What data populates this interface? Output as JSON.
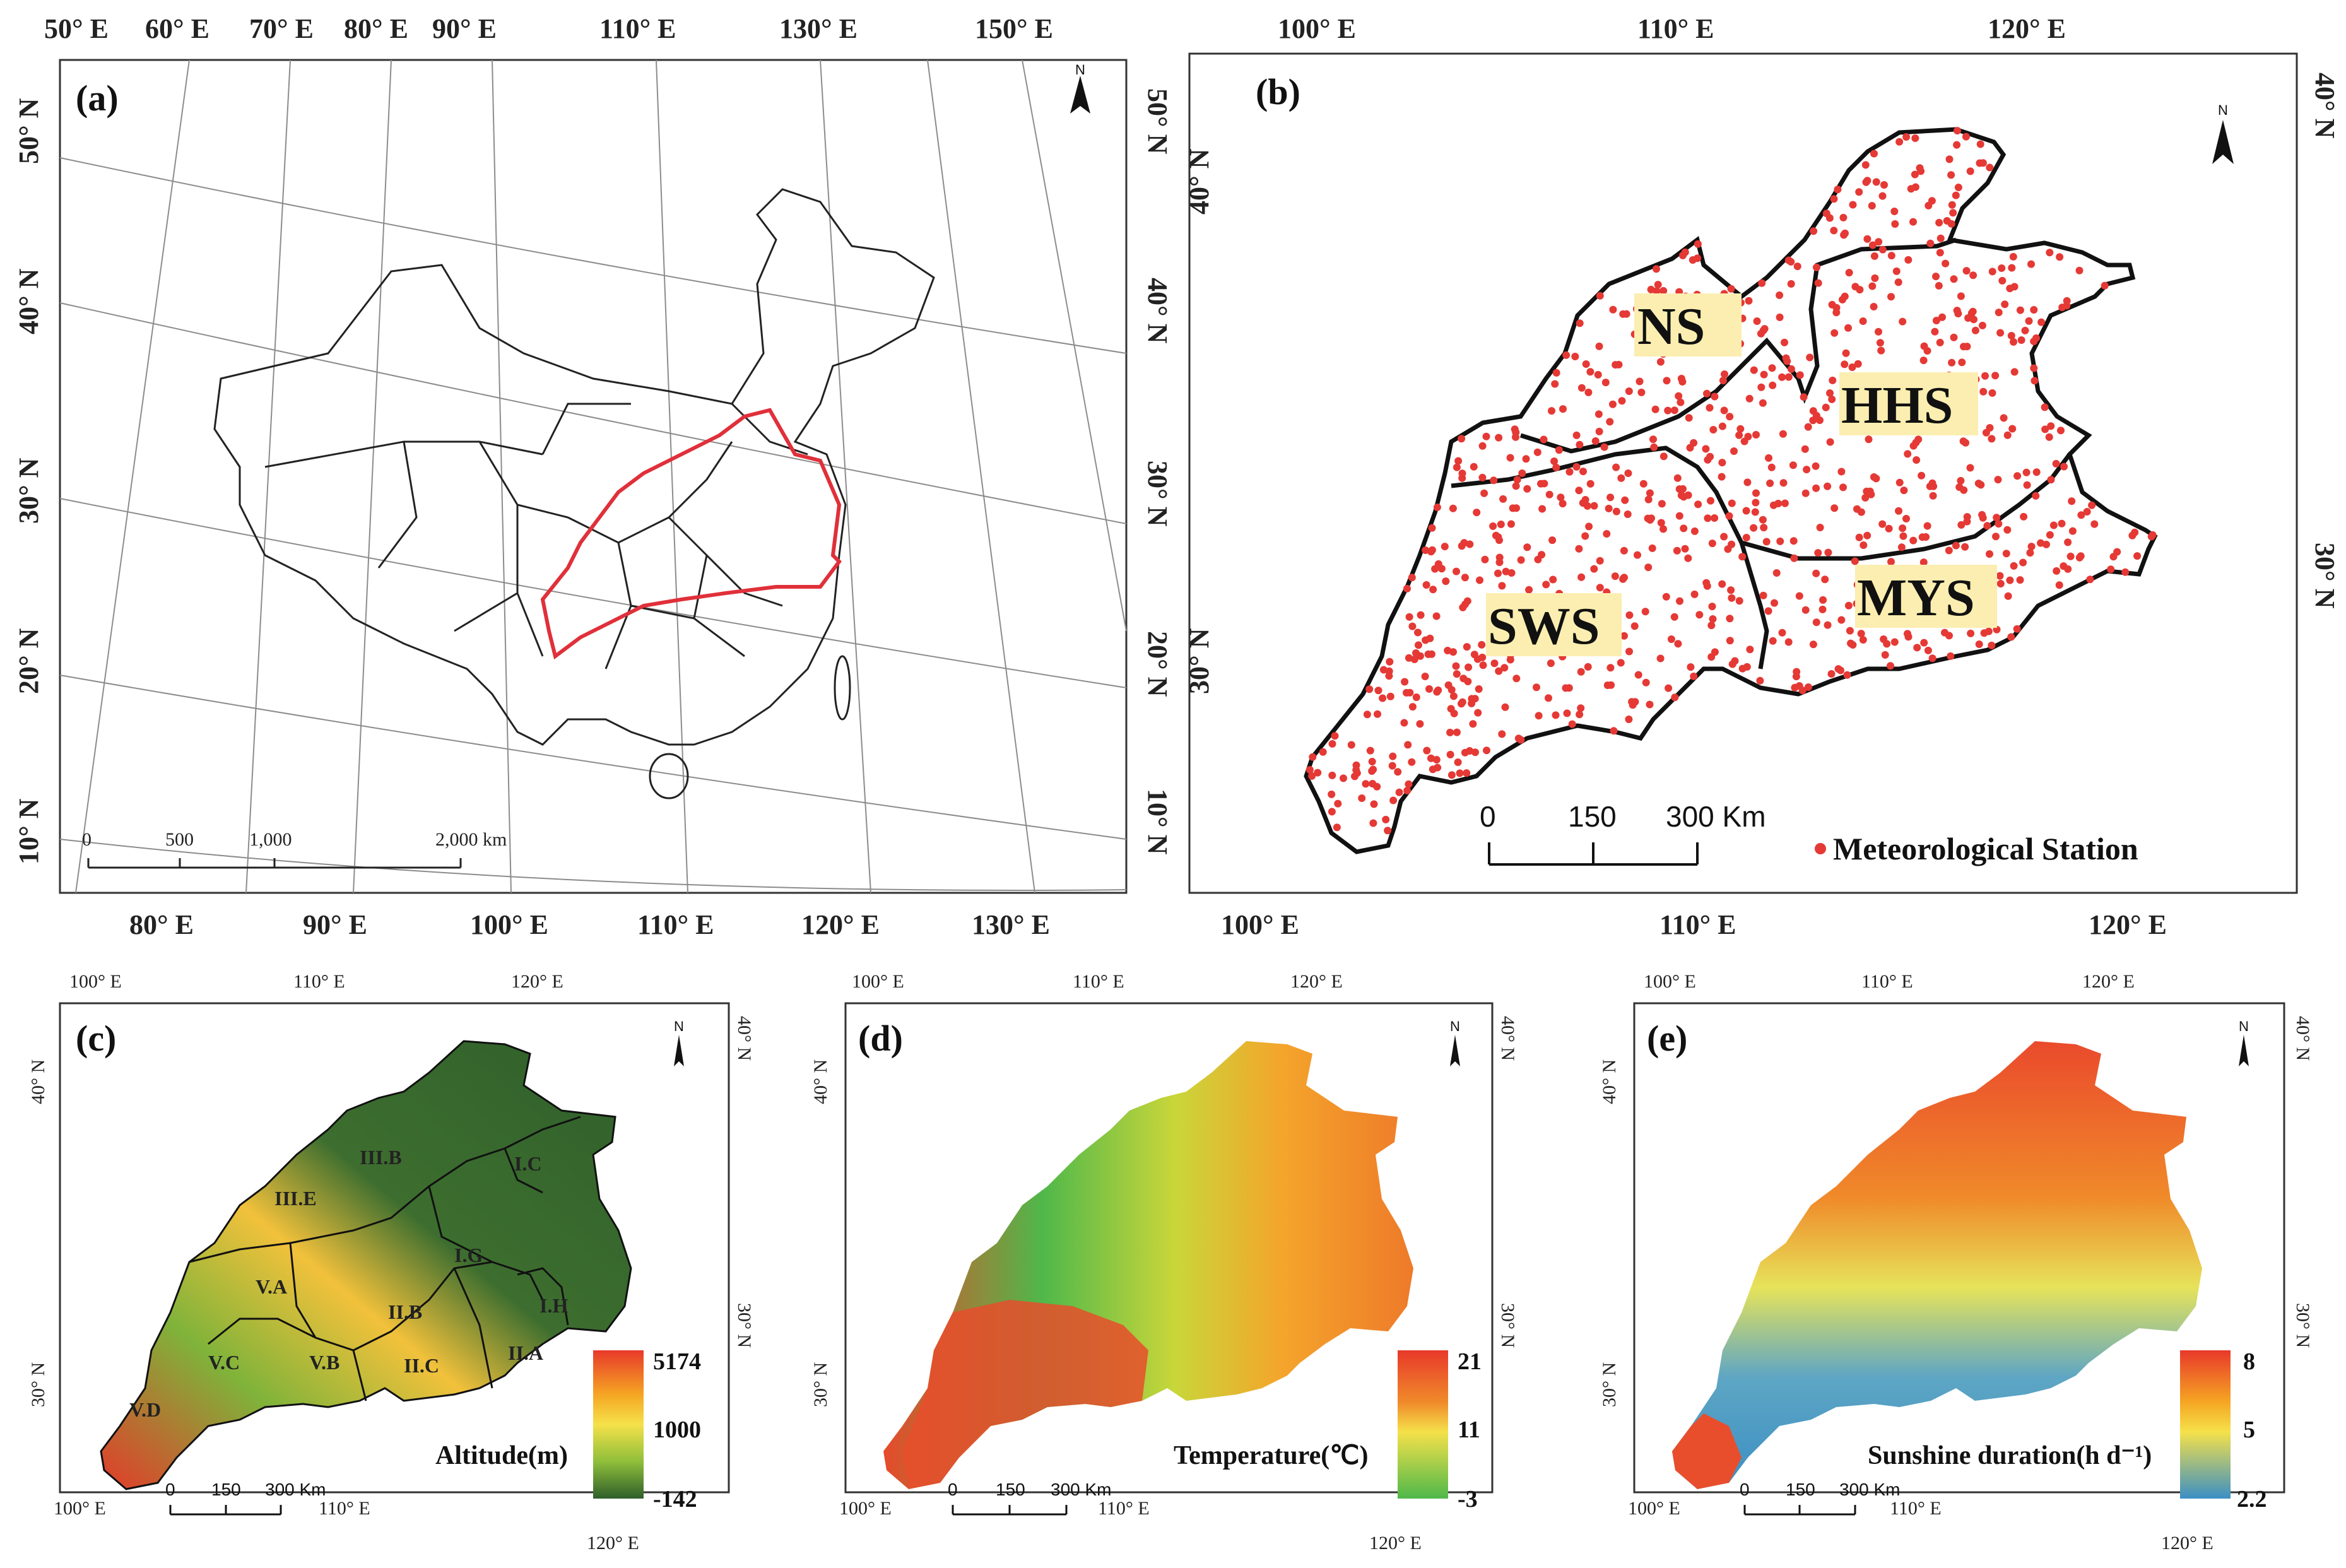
{
  "panels": {
    "a": {
      "label": "(a)",
      "top_lon": [
        "50° E",
        "60° E",
        "70° E",
        "80° E",
        "90° E",
        "110° E",
        "130° E",
        "150° E"
      ],
      "bottom_lon": [
        "80° E",
        "90° E",
        "100° E",
        "110° E",
        "120° E",
        "130° E"
      ],
      "left_lat": [
        "50° N",
        "40° N",
        "30° N",
        "20° N",
        "10° N"
      ],
      "right_lat": [
        "50° N",
        "40° N",
        "30° N",
        "20° N",
        "10° N"
      ],
      "scale": [
        "0",
        "500",
        "1,000",
        "2,000 km"
      ],
      "north": "N"
    },
    "b": {
      "label": "(b)",
      "top_lon": [
        "100° E",
        "110° E",
        "120° E"
      ],
      "bottom_lon": [
        "100° E",
        "110° E",
        "120° E"
      ],
      "left_lat": [
        "40° N",
        "30° N"
      ],
      "right_lat": [
        "40° N",
        "30° N"
      ],
      "regions": [
        "NS",
        "HHS",
        "SWS",
        "MYS"
      ],
      "scale": [
        "0",
        "150",
        "300 Km"
      ],
      "legend": "Meteorological Station",
      "north": "N",
      "station_color": "#e53935"
    },
    "c": {
      "label": "(c)",
      "top_lon": [
        "100° E",
        "110° E",
        "120° E"
      ],
      "bottom_lon": [
        "100° E",
        "110° E",
        "120° E"
      ],
      "left_lat": [
        "40° N",
        "30° N"
      ],
      "right_lat": [
        "40° N",
        "30° N"
      ],
      "zones": [
        "III.B",
        "III.E",
        "I.C",
        "I.G",
        "V.A",
        "II.B",
        "I.H",
        "V.C",
        "V.B",
        "II.C",
        "II.A",
        "V.D"
      ],
      "legend_title": "Altitude(m)",
      "legend_values": [
        "5174",
        "1000",
        "-142"
      ],
      "scale": [
        "0",
        "150",
        "300 Km"
      ],
      "north": "N"
    },
    "d": {
      "label": "(d)",
      "top_lon": [
        "100° E",
        "110° E",
        "120° E"
      ],
      "bottom_lon": [
        "100° E",
        "110° E",
        "120° E"
      ],
      "left_lat": [
        "40° N",
        "30° N"
      ],
      "right_lat": [
        "40° N",
        "30° N"
      ],
      "legend_title": "Temperature(℃)",
      "legend_values": [
        "21",
        "11",
        "-3"
      ],
      "scale": [
        "0",
        "150",
        "300 Km"
      ],
      "north": "N"
    },
    "e": {
      "label": "(e)",
      "top_lon": [
        "100° E",
        "110° E",
        "120° E"
      ],
      "bottom_lon": [
        "100° E",
        "110° E",
        "120° E"
      ],
      "left_lat": [
        "40° N",
        "30° N"
      ],
      "right_lat": [
        "40° N",
        "30° N"
      ],
      "legend_title": "Sunshine duration(h d⁻¹)",
      "legend_values": [
        "8",
        "5",
        "2.2"
      ],
      "scale": [
        "0",
        "150",
        "300 Km"
      ],
      "north": "N"
    }
  },
  "colors": {
    "altitude_ramp": [
      "#e8392a",
      "#f5a623",
      "#f5e14a",
      "#8fbf3a",
      "#2f5f2a"
    ],
    "temperature_ramp": [
      "#e8392a",
      "#f08a2a",
      "#f5e14a",
      "#4fb84a"
    ],
    "sunshine_ramp": [
      "#e8392a",
      "#f5a623",
      "#f5e14a",
      "#3b8fc4"
    ]
  }
}
